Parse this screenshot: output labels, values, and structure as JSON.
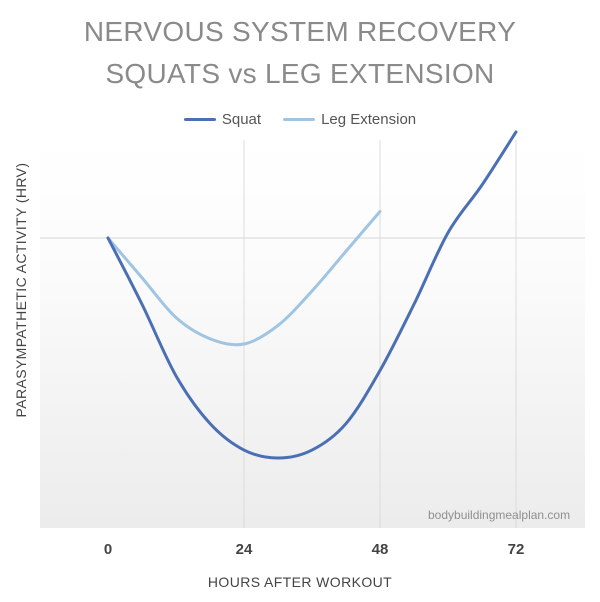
{
  "chart_data": {
    "type": "line",
    "title": "NERVOUS SYSTEM RECOVERY",
    "subtitle": "SQUATS vs LEG EXTENSION",
    "xlabel": "HOURS AFTER WORKOUT",
    "ylabel": "PARASYMPATHETIC ACTIVITY (HRV)",
    "x_ticks": [
      0,
      24,
      48,
      72
    ],
    "xlim": [
      0,
      84
    ],
    "ylim": [
      -1.0,
      0.42
    ],
    "grid": "vertical lines at x ticks and horizontal baseline",
    "legend_position": "top",
    "series": [
      {
        "name": "Squat",
        "color": "#4a6fb5",
        "points": [
          [
            0,
            0
          ],
          [
            6,
            -0.25
          ],
          [
            12,
            -0.52
          ],
          [
            18,
            -0.7
          ],
          [
            24,
            -0.8
          ],
          [
            30,
            -0.83
          ],
          [
            36,
            -0.8
          ],
          [
            42,
            -0.7
          ],
          [
            48,
            -0.5
          ],
          [
            54,
            -0.25
          ],
          [
            60,
            0.02
          ],
          [
            66,
            0.2
          ],
          [
            72,
            0.4
          ]
        ]
      },
      {
        "name": "Leg Extension",
        "color": "#9fc5e3",
        "points": [
          [
            0,
            0
          ],
          [
            6,
            -0.15
          ],
          [
            12,
            -0.3
          ],
          [
            18,
            -0.38
          ],
          [
            24,
            -0.4
          ],
          [
            30,
            -0.33
          ],
          [
            36,
            -0.2
          ],
          [
            42,
            -0.05
          ],
          [
            48,
            0.1
          ]
        ]
      }
    ]
  },
  "watermark": "bodybuildingmealplan.com"
}
